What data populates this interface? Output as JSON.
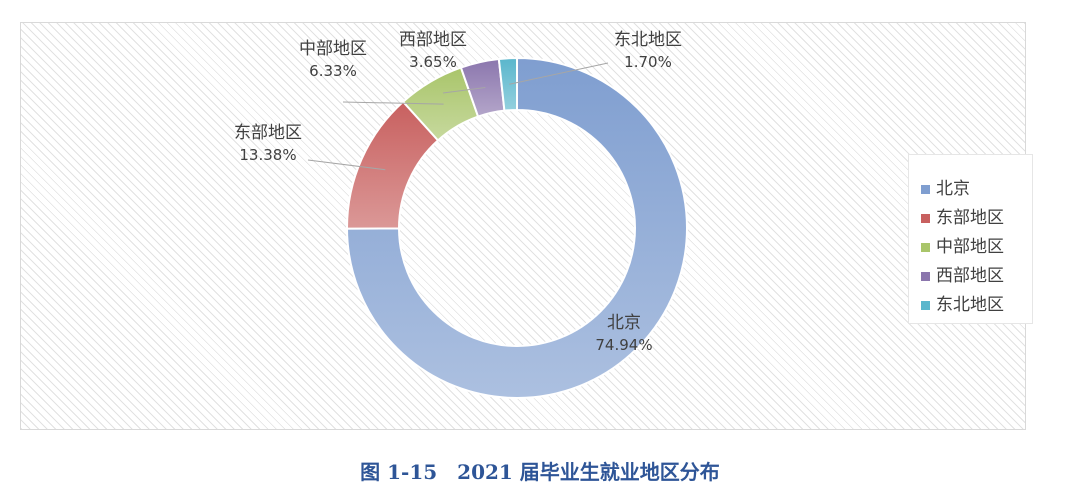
{
  "chart_data": {
    "type": "pie",
    "variant": "donut",
    "categories": [
      "北京",
      "东部地区",
      "中部地区",
      "西部地区",
      "东北地区"
    ],
    "values": [
      74.94,
      13.38,
      6.33,
      3.65,
      1.7
    ],
    "value_labels": [
      "74.94%",
      "13.38%",
      "6.33%",
      "3.65%",
      "1.70%"
    ],
    "colors": [
      "#7f9ed0",
      "#c8605f",
      "#a9c56a",
      "#8b76ad",
      "#5ab6cc"
    ],
    "legend": {
      "placement": "right",
      "entries": [
        "北京",
        "东部地区",
        "中部地区",
        "西部地区",
        "东北地区"
      ]
    },
    "caption": "图 1-15　2021 届毕业生就业地区分布"
  }
}
